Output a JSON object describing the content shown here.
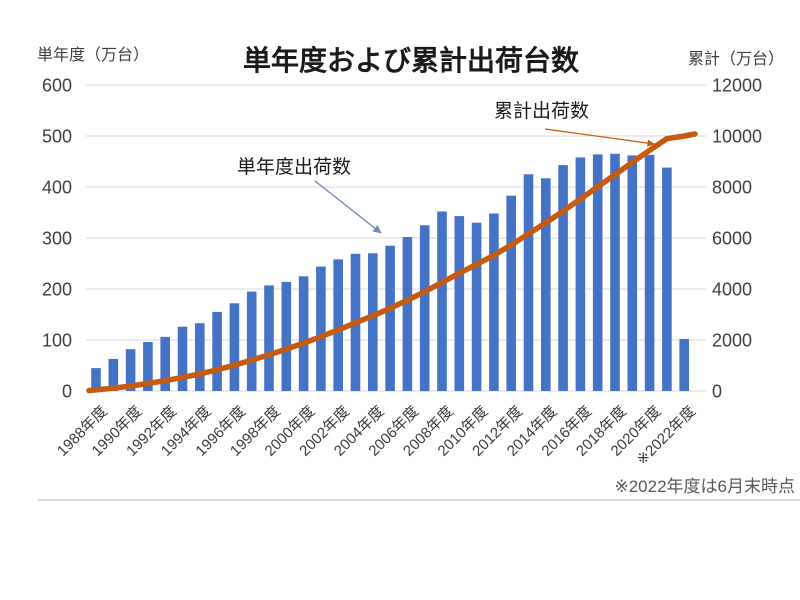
{
  "page": {
    "background": "#FFFFFF"
  },
  "chart_data": {
    "type": "combo-bar-line",
    "title": "単年度および累計出荷台数",
    "footnote": "※2022年度は6月末時点",
    "grid": true,
    "legend": "none",
    "left_axis": {
      "title": "単年度（万台）",
      "min": 0,
      "max": 600,
      "tick_step": 100,
      "ticks": [
        0,
        100,
        200,
        300,
        400,
        500,
        600
      ]
    },
    "right_axis": {
      "title": "累計（万台）",
      "min": 0,
      "max": 12000,
      "tick_step": 2000,
      "ticks": [
        0,
        2000,
        4000,
        6000,
        8000,
        10000,
        12000
      ]
    },
    "categories": [
      1988,
      1989,
      1990,
      1991,
      1992,
      1993,
      1994,
      1995,
      1996,
      1997,
      1998,
      1999,
      2000,
      2001,
      2002,
      2003,
      2004,
      2005,
      2006,
      2007,
      2008,
      2009,
      2010,
      2011,
      2012,
      2013,
      2014,
      2015,
      2016,
      2017,
      2018,
      2019,
      2020,
      2021,
      2022
    ],
    "x_tick_labels": [
      "1988年度",
      "1990年度",
      "1992年度",
      "1994年度",
      "1996年度",
      "1998年度",
      "2000年度",
      "2002年度",
      "2004年度",
      "2006年度",
      "2008年度",
      "2010年度",
      "2012年度",
      "2014年度",
      "2016年度",
      "2018年度",
      "2020年度",
      "※2022年度"
    ],
    "series": [
      {
        "name": "単年度出荷数",
        "type": "bar",
        "axis": "left",
        "color": "#4472C4",
        "values": [
          45,
          63,
          82,
          96,
          106,
          126,
          133,
          155,
          172,
          195,
          207,
          214,
          225,
          244,
          258,
          269,
          270,
          285,
          302,
          325,
          352,
          343,
          330,
          348,
          383,
          425,
          417,
          443,
          458,
          464,
          465,
          462,
          463,
          438,
          102
        ]
      },
      {
        "name": "累計出荷数",
        "type": "line",
        "axis": "right",
        "color": "#C55A11",
        "values": [
          45,
          110,
          195,
          295,
          405,
          535,
          670,
          830,
          1010,
          1210,
          1425,
          1645,
          1880,
          2130,
          2395,
          2675,
          2950,
          3245,
          3560,
          3895,
          4260,
          4620,
          4960,
          5325,
          5725,
          6165,
          6595,
          7055,
          7530,
          8005,
          8485,
          8965,
          9440,
          9895,
          10000
        ]
      }
    ],
    "annotations": [
      {
        "text": "単年度出荷数",
        "color": "#1a1a1a",
        "arrow_color": "#7087B8"
      },
      {
        "text": "累計出荷数",
        "color": "#1a1a1a",
        "arrow_color": "#C55A11"
      }
    ],
    "colors": {
      "bar": "#4472C4",
      "line": "#C55A11",
      "gridline": "#D9D9D9",
      "tick_text": "#404040",
      "footnote_text": "#595959"
    }
  }
}
